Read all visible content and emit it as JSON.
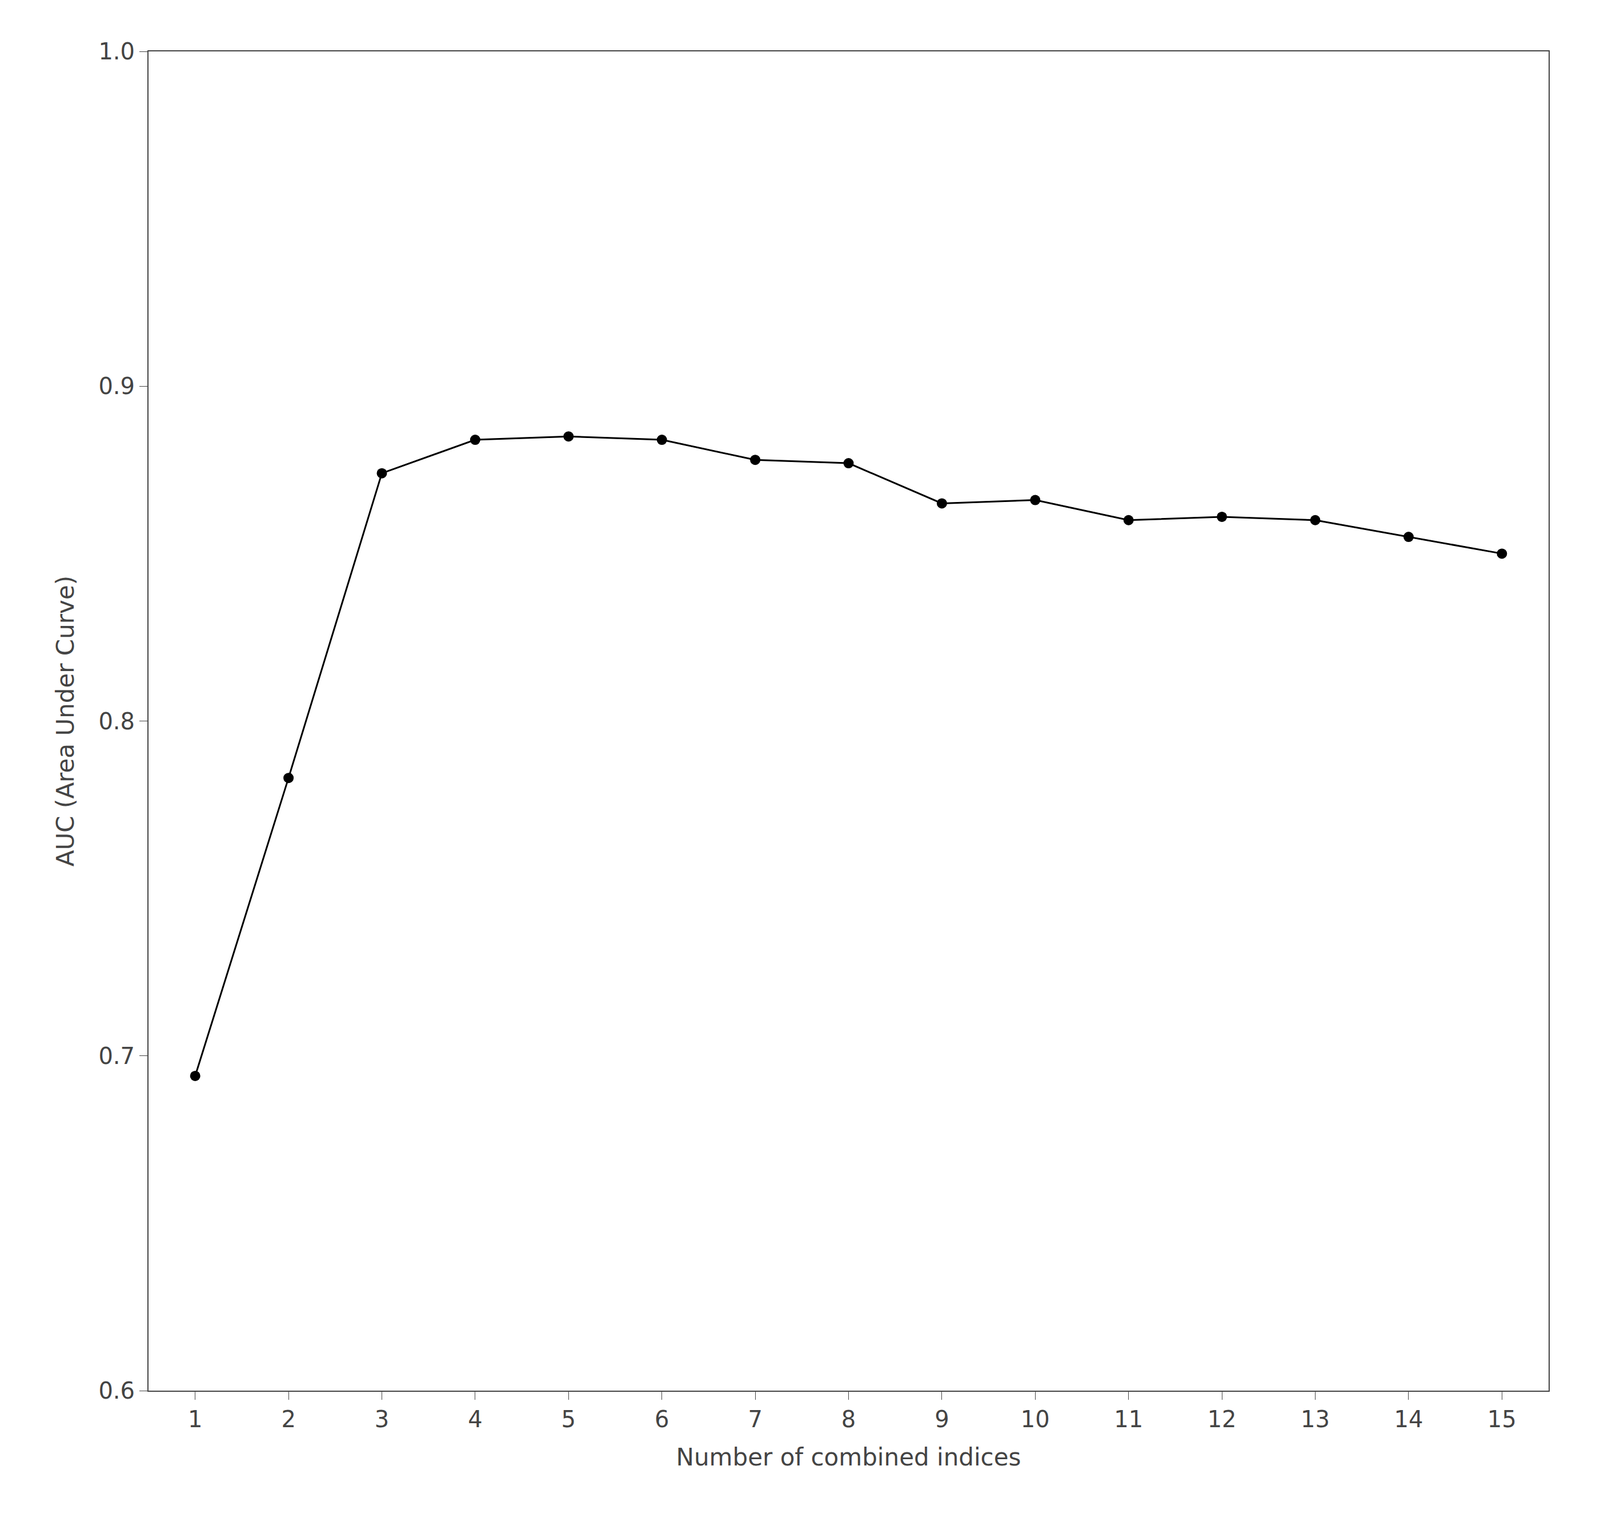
{
  "chart_data": {
    "type": "line",
    "x": [
      1,
      2,
      3,
      4,
      5,
      6,
      7,
      8,
      9,
      10,
      11,
      12,
      13,
      14,
      15
    ],
    "values": [
      0.694,
      0.783,
      0.874,
      0.884,
      0.885,
      0.884,
      0.878,
      0.877,
      0.865,
      0.866,
      0.86,
      0.861,
      0.86,
      0.855,
      0.85
    ],
    "xlabel": "Number of combined indices",
    "ylabel": "AUC (Area Under Curve)",
    "xlim": [
      0.5,
      15.5
    ],
    "ylim": [
      0.6,
      1.0
    ],
    "xticks": [
      1,
      2,
      3,
      4,
      5,
      6,
      7,
      8,
      9,
      10,
      11,
      12,
      13,
      14,
      15
    ],
    "yticks": [
      0.6,
      0.7,
      0.8,
      0.9,
      {
        "value": 1.0,
        "label": "1.0"
      }
    ],
    "color": "#000000",
    "marker": "circle",
    "grid": false
  }
}
